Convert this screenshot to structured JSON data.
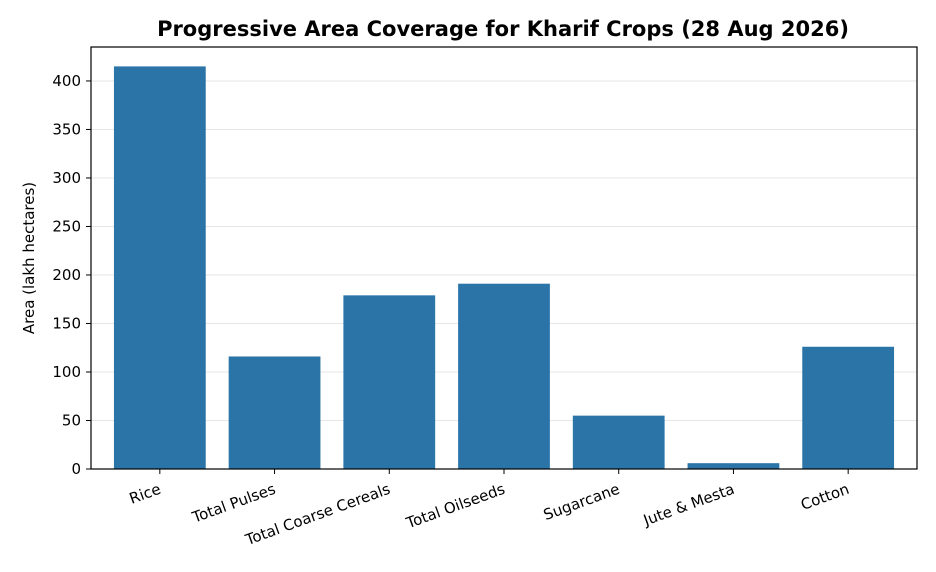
{
  "chart_data": {
    "type": "bar",
    "title": "Progressive Area Coverage for Kharif Crops (28 Aug 2026)",
    "xlabel": "",
    "ylabel": "Area (lakh hectares)",
    "categories": [
      "Rice",
      "Total Pulses",
      "Total Coarse Cereals",
      "Total Oilseeds",
      "Sugarcane",
      "Jute & Mesta",
      "Cotton"
    ],
    "values": [
      415,
      116,
      179,
      191,
      55,
      6,
      126
    ],
    "ylim": [
      0,
      435
    ],
    "yticks": [
      0,
      50,
      100,
      150,
      200,
      250,
      300,
      350,
      400
    ],
    "grid": "horizontal",
    "legend": "none",
    "colors": {
      "bar": "#2a74a8"
    }
  }
}
